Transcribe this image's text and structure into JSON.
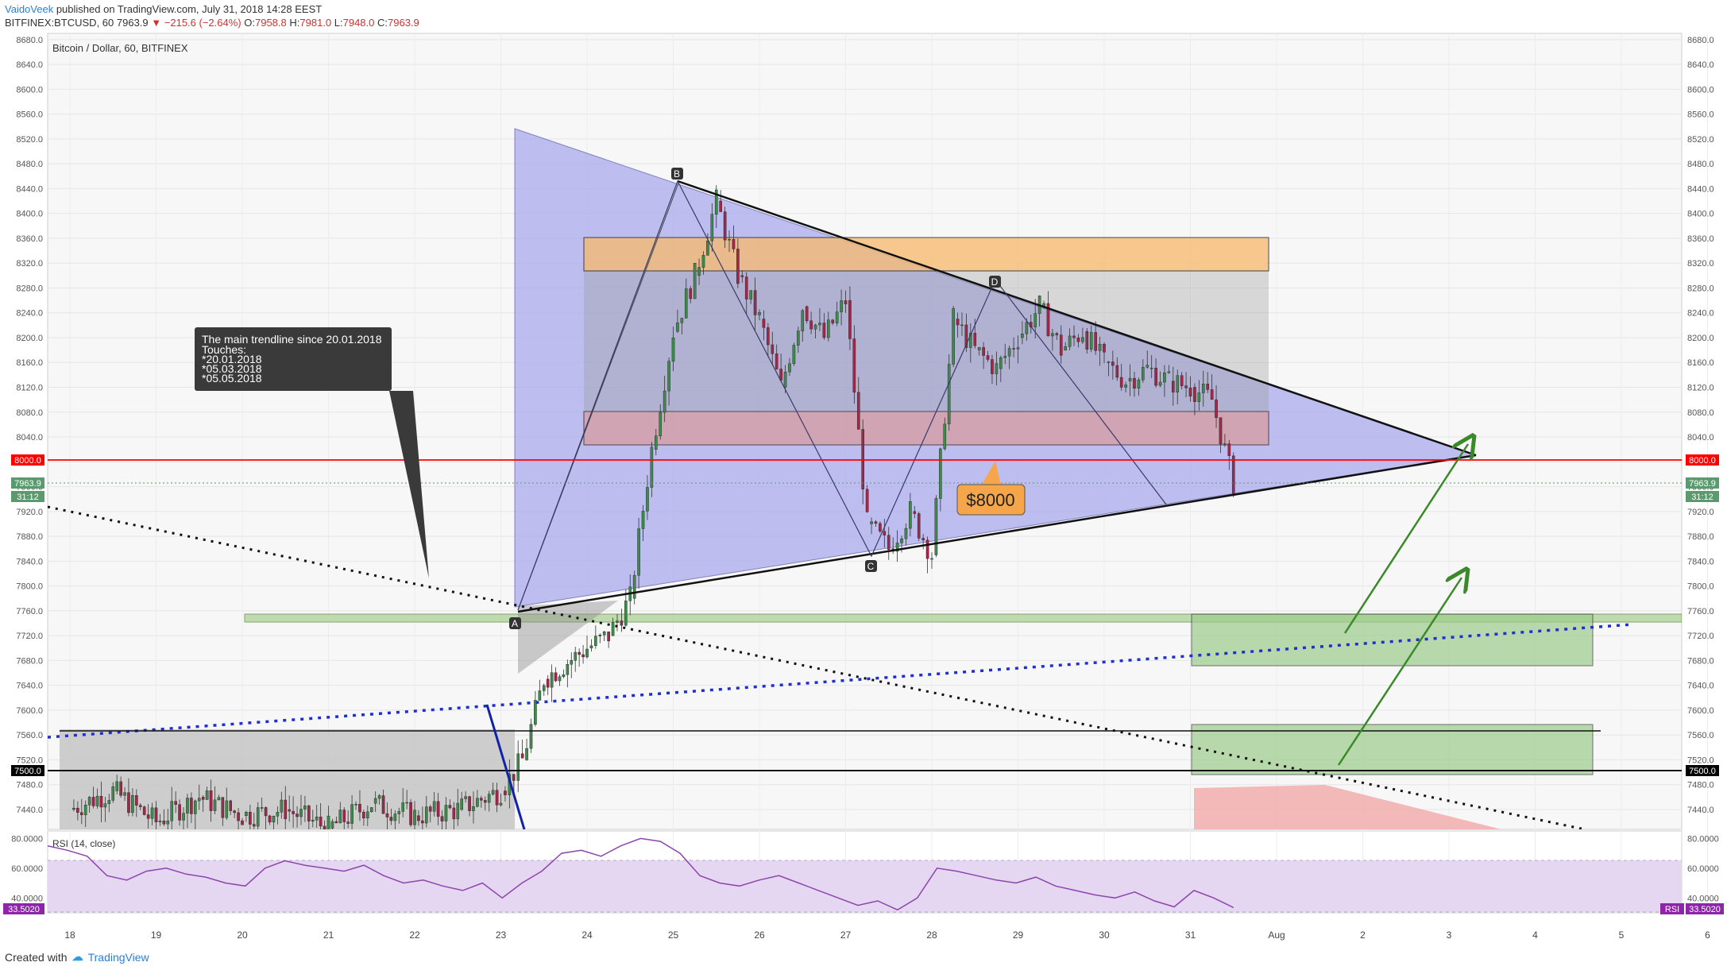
{
  "header": {
    "author": "VaidoVeek",
    "published": "published on TradingView.com, July 31, 2018 14:28 EEST",
    "symbol": "BITFINEX:BTCUSD, 60",
    "last": "7963.9",
    "change": "−215.6 (−2.64%)",
    "o_label": "O:",
    "o": "7958.8",
    "h_label": "H:",
    "h": "7981.0",
    "l_label": "L:",
    "l": "7948.0",
    "c_label": "C:",
    "c": "7963.9"
  },
  "footer": {
    "created_with": "Created with",
    "brand": "TradingView"
  },
  "chart_data": {
    "type": "line",
    "title": "Bitcoin / Dollar, 60, BITFINEX",
    "ylim": [
      7408,
      8690
    ],
    "yticks": [
      8680,
      8640,
      8600,
      8560,
      8520,
      8480,
      8440,
      8400,
      8360,
      8320,
      8280,
      8240,
      8200,
      8160,
      8120,
      8080,
      8040,
      8000,
      7960,
      7920,
      7880,
      7840,
      7800,
      7760,
      7720,
      7680,
      7640,
      7600,
      7560,
      7520,
      7480,
      7440
    ],
    "ytick_labels": [
      "8680.0",
      "8640.0",
      "8600.0",
      "8560.0",
      "8520.0",
      "8480.0",
      "8440.0",
      "8400.0",
      "8360.0",
      "8320.0",
      "8280.0",
      "8240.0",
      "8200.0",
      "8160.0",
      "8120.0",
      "8080.0",
      "8040.0",
      "8000.0",
      "7960.0",
      "7920.0",
      "7880.0",
      "7840.0",
      "7800.0",
      "7760.0",
      "7720.0",
      "7680.0",
      "7640.0",
      "7600.0",
      "7560.0",
      "7520.0",
      "7480.0",
      "7440.0"
    ],
    "xtick_labels": [
      "18",
      "19",
      "20",
      "21",
      "22",
      "23",
      "24",
      "25",
      "26",
      "27",
      "28",
      "29",
      "30",
      "31",
      "Aug",
      "2",
      "3",
      "4",
      "5",
      "6"
    ],
    "price_markers": [
      {
        "label": "8000.0",
        "value": 8000,
        "color": "#ff0000"
      },
      {
        "label": "7963.9",
        "value": 7963.9,
        "color": "#5b9a6e"
      },
      {
        "label": "31:12",
        "color": "#5b9a6e"
      },
      {
        "label": "7500.0",
        "value": 7500,
        "color": "#000000"
      }
    ],
    "series": [
      {
        "name": "BTCUSD",
        "x": [
          "07-18 00",
          "07-18 12",
          "07-19 00",
          "07-19 12",
          "07-20 00",
          "07-20 12",
          "07-21 00",
          "07-21 12",
          "07-22 00",
          "07-22 12",
          "07-23 00",
          "07-23 06",
          "07-23 12",
          "07-24 00",
          "07-24 06",
          "07-24 12",
          "07-24 18",
          "07-25 00",
          "07-25 06",
          "07-25 12",
          "07-25 18",
          "07-26 00",
          "07-26 06",
          "07-26 12",
          "07-26 18",
          "07-27 00",
          "07-27 06",
          "07-27 12",
          "07-27 18",
          "07-28 00",
          "07-28 06",
          "07-28 12",
          "07-28 18",
          "07-29 00",
          "07-29 06",
          "07-29 12",
          "07-29 18",
          "07-30 00",
          "07-30 06",
          "07-30 12",
          "07-30 18",
          "07-31 00",
          "07-31 06",
          "07-31 12"
        ],
        "values": [
          7440,
          7470,
          7420,
          7460,
          7430,
          7440,
          7410,
          7450,
          7430,
          7440,
          7470,
          7520,
          7650,
          7700,
          7720,
          7780,
          8020,
          8210,
          8300,
          8420,
          8300,
          8230,
          8120,
          8250,
          8200,
          8260,
          7900,
          7860,
          7920,
          7850,
          8230,
          8180,
          8150,
          8200,
          8250,
          8180,
          8210,
          8160,
          8130,
          8150,
          8130,
          8120,
          8100,
          7963.9
        ]
      }
    ],
    "rsi": {
      "label": "RSI (14, close)",
      "ylim": [
        30,
        85
      ],
      "ytick_labels": [
        "80.0000",
        "60.0000",
        "40.0000"
      ],
      "last_label": "33.5020",
      "tag": "RSI",
      "values": [
        75,
        72,
        68,
        55,
        52,
        58,
        60,
        56,
        54,
        50,
        48,
        60,
        65,
        62,
        60,
        58,
        62,
        55,
        50,
        52,
        48,
        45,
        50,
        40,
        50,
        58,
        70,
        72,
        68,
        75,
        80,
        78,
        70,
        55,
        50,
        48,
        52,
        55,
        50,
        45,
        40,
        35,
        38,
        32,
        40,
        60,
        58,
        55,
        52,
        50,
        54,
        48,
        45,
        42,
        40,
        44,
        38,
        34,
        45,
        40,
        33.5
      ]
    },
    "annotations": {
      "callout": [
        "The main trendline since 20.01.2018",
        "Touches:",
        "*20.01.2018",
        "*05.03.2018",
        "*05.05.2018"
      ],
      "price_label": "$8000",
      "points": [
        "A",
        "B",
        "C",
        "D"
      ]
    },
    "grid": true,
    "legend": "none"
  }
}
